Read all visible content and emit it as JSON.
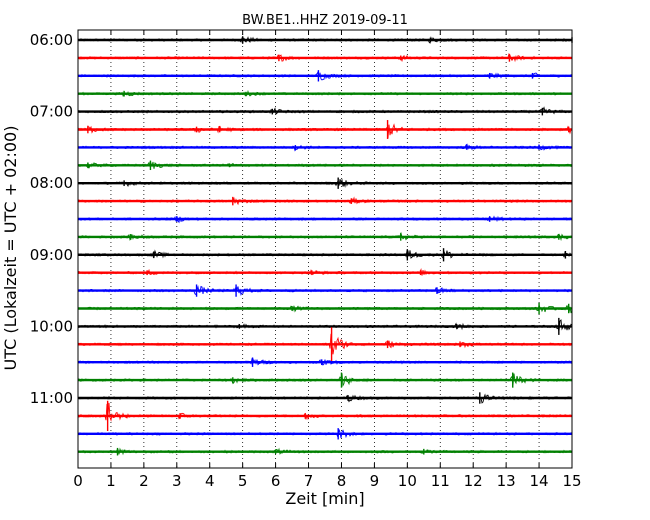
{
  "chart_data": {
    "type": "line",
    "title": "BW.BE1..HHZ 2019-09-11",
    "xlabel": "Zeit  [min]",
    "ylabel": "UTC (Lokalzeit = UTC + 02:00)",
    "xlim": [
      0,
      15
    ],
    "x_ticks": [
      "0",
      "1",
      "2",
      "3",
      "4",
      "5",
      "6",
      "7",
      "8",
      "9",
      "10",
      "11",
      "12",
      "13",
      "14",
      "15"
    ],
    "y_ticks": [
      "06:00",
      "07:00",
      "08:00",
      "09:00",
      "10:00",
      "11:00"
    ],
    "grid": true,
    "line_colors": [
      "#000000",
      "#ff0000",
      "#0000ff",
      "#008000"
    ],
    "series": [
      {
        "start": "06:00",
        "color": "#000000",
        "events": [
          [
            5.0,
            0.4
          ],
          [
            10.7,
            0.25
          ],
          [
            15.0,
            0.3
          ]
        ]
      },
      {
        "start": "06:15",
        "color": "#ff0000",
        "events": [
          [
            6.1,
            0.35
          ],
          [
            9.8,
            0.25
          ],
          [
            13.1,
            0.4
          ]
        ]
      },
      {
        "start": "06:30",
        "color": "#0000ff",
        "events": [
          [
            7.3,
            0.6
          ],
          [
            12.5,
            0.3
          ],
          [
            13.8,
            0.3
          ]
        ]
      },
      {
        "start": "06:45",
        "color": "#008000",
        "events": [
          [
            1.4,
            0.3
          ],
          [
            5.1,
            0.2
          ]
        ]
      },
      {
        "start": "07:00",
        "color": "#000000",
        "events": [
          [
            5.9,
            0.3
          ],
          [
            14.1,
            0.4
          ]
        ]
      },
      {
        "start": "07:15",
        "color": "#ff0000",
        "events": [
          [
            0.3,
            0.4
          ],
          [
            3.6,
            0.3
          ],
          [
            4.3,
            0.3
          ],
          [
            9.4,
            1.0
          ],
          [
            14.9,
            0.3
          ]
        ]
      },
      {
        "start": "07:30",
        "color": "#0000ff",
        "events": [
          [
            6.6,
            0.25
          ],
          [
            11.8,
            0.25
          ],
          [
            14.0,
            0.25
          ]
        ]
      },
      {
        "start": "07:45",
        "color": "#008000",
        "events": [
          [
            0.3,
            0.3
          ],
          [
            2.2,
            0.5
          ],
          [
            4.6,
            0.2
          ]
        ]
      },
      {
        "start": "08:00",
        "color": "#000000",
        "events": [
          [
            1.4,
            0.3
          ],
          [
            7.9,
            0.6
          ]
        ]
      },
      {
        "start": "08:15",
        "color": "#ff0000",
        "events": [
          [
            4.7,
            0.45
          ],
          [
            8.3,
            0.3
          ]
        ]
      },
      {
        "start": "08:30",
        "color": "#0000ff",
        "events": [
          [
            3.0,
            0.3
          ],
          [
            12.5,
            0.3
          ]
        ]
      },
      {
        "start": "08:45",
        "color": "#008000",
        "events": [
          [
            1.6,
            0.3
          ],
          [
            9.8,
            0.4
          ],
          [
            14.6,
            0.3
          ]
        ]
      },
      {
        "start": "09:00",
        "color": "#000000",
        "events": [
          [
            2.3,
            0.35
          ],
          [
            10.0,
            0.6
          ],
          [
            11.1,
            0.7
          ],
          [
            14.8,
            0.4
          ]
        ]
      },
      {
        "start": "09:15",
        "color": "#ff0000",
        "events": [
          [
            2.1,
            0.25
          ],
          [
            7.1,
            0.25
          ],
          [
            10.4,
            0.25
          ]
        ]
      },
      {
        "start": "09:30",
        "color": "#0000ff",
        "events": [
          [
            3.6,
            0.65
          ],
          [
            4.8,
            0.65
          ],
          [
            10.9,
            0.35
          ]
        ]
      },
      {
        "start": "09:45",
        "color": "#008000",
        "events": [
          [
            6.5,
            0.25
          ],
          [
            14.0,
            0.6
          ],
          [
            14.9,
            0.5
          ]
        ]
      },
      {
        "start": "10:00",
        "color": "#000000",
        "events": [
          [
            4.9,
            0.25
          ],
          [
            11.5,
            0.25
          ],
          [
            14.6,
            0.9
          ]
        ]
      },
      {
        "start": "10:15",
        "color": "#ff0000",
        "events": [
          [
            7.7,
            1.8
          ],
          [
            9.4,
            0.4
          ],
          [
            11.6,
            0.3
          ]
        ]
      },
      {
        "start": "10:30",
        "color": "#0000ff",
        "events": [
          [
            5.3,
            0.5
          ],
          [
            7.4,
            0.3
          ]
        ]
      },
      {
        "start": "10:45",
        "color": "#008000",
        "events": [
          [
            4.7,
            0.3
          ],
          [
            8.0,
            0.8
          ],
          [
            13.2,
            0.8
          ]
        ]
      },
      {
        "start": "11:00",
        "color": "#000000",
        "events": [
          [
            8.2,
            0.3
          ],
          [
            12.2,
            0.6
          ]
        ]
      },
      {
        "start": "11:15",
        "color": "#ff0000",
        "events": [
          [
            0.9,
            1.6
          ],
          [
            3.1,
            0.3
          ],
          [
            6.9,
            0.3
          ]
        ]
      },
      {
        "start": "11:30",
        "color": "#0000ff",
        "events": [
          [
            7.9,
            0.6
          ]
        ]
      },
      {
        "start": "11:45",
        "color": "#008000",
        "events": [
          [
            1.2,
            0.4
          ],
          [
            6.0,
            0.25
          ],
          [
            10.5,
            0.3
          ]
        ]
      }
    ]
  }
}
